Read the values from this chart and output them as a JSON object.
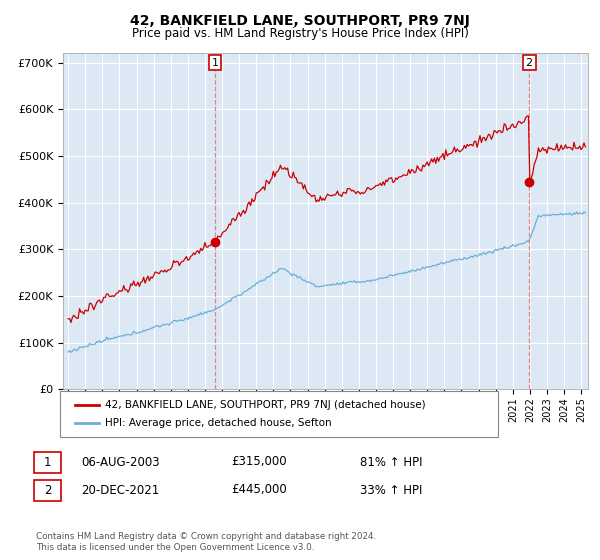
{
  "title": "42, BANKFIELD LANE, SOUTHPORT, PR9 7NJ",
  "subtitle": "Price paid vs. HM Land Registry's House Price Index (HPI)",
  "ylim": [
    0,
    720000
  ],
  "yticks": [
    0,
    100000,
    200000,
    300000,
    400000,
    500000,
    600000,
    700000
  ],
  "ytick_labels": [
    "£0",
    "£100K",
    "£200K",
    "£300K",
    "£400K",
    "£500K",
    "£600K",
    "£700K"
  ],
  "transaction1": {
    "date_num": 2003.59,
    "price": 315000,
    "label": "1",
    "date_str": "06-AUG-2003",
    "price_str": "£315,000",
    "pct": "81% ↑ HPI"
  },
  "transaction2": {
    "date_num": 2021.96,
    "price": 445000,
    "label": "2",
    "date_str": "20-DEC-2021",
    "price_str": "£445,000",
    "pct": "33% ↑ HPI"
  },
  "hpi_color": "#6baed6",
  "price_color": "#cc0000",
  "vline_color": "#e88080",
  "grid_color": "#cccccc",
  "background_color": "#ffffff",
  "chart_bg_color": "#dce9f5",
  "legend_label_price": "42, BANKFIELD LANE, SOUTHPORT, PR9 7NJ (detached house)",
  "legend_label_hpi": "HPI: Average price, detached house, Sefton",
  "footer": "Contains HM Land Registry data © Crown copyright and database right 2024.\nThis data is licensed under the Open Government Licence v3.0.",
  "table_rows": [
    {
      "num": "1",
      "date": "06-AUG-2003",
      "price": "£315,000",
      "pct": "81% ↑ HPI"
    },
    {
      "num": "2",
      "date": "20-DEC-2021",
      "price": "£445,000",
      "pct": "33% ↑ HPI"
    }
  ]
}
